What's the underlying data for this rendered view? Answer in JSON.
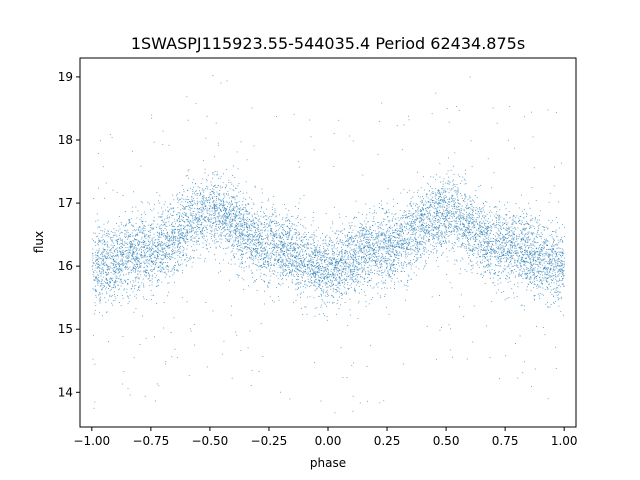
{
  "chart_data": {
    "type": "scatter",
    "title": "1SWASPJ115923.55-544035.4 Period 62434.875s",
    "xlabel": "phase",
    "ylabel": "flux",
    "xlim": [
      -1.05,
      1.05
    ],
    "ylim": [
      13.45,
      19.3
    ],
    "x_ticks": [
      -1.0,
      -0.75,
      -0.5,
      -0.25,
      0.0,
      0.25,
      0.5,
      0.75,
      1.0
    ],
    "x_tick_labels": [
      "−1.00",
      "−0.75",
      "−0.50",
      "−0.25",
      "0.00",
      "0.25",
      "0.50",
      "0.75",
      "1.00"
    ],
    "y_ticks": [
      14,
      15,
      16,
      17,
      18,
      19
    ],
    "y_tick_labels": [
      "14",
      "15",
      "16",
      "17",
      "18",
      "19"
    ],
    "grid": false,
    "point_color": "#1f77b4",
    "series": [
      {
        "phase_range": [
          -1.0,
          1.0
        ],
        "trend": {
          "phase": [
            -1.0,
            -0.75,
            -0.5,
            -0.25,
            0.0,
            0.25,
            0.5,
            0.75,
            1.0
          ],
          "flux": [
            16.0,
            16.25,
            16.85,
            16.35,
            16.0,
            16.3,
            16.85,
            16.3,
            16.0
          ]
        },
        "scatter_sigma": 0.3,
        "point_count": 9000
      }
    ]
  }
}
